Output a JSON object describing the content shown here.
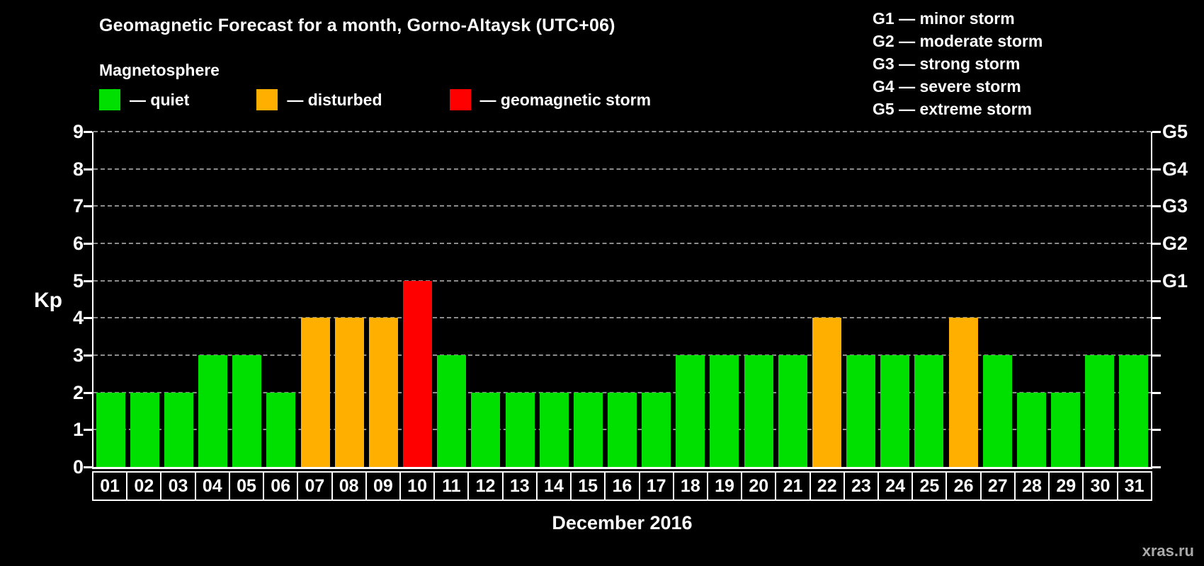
{
  "title": "Geomagnetic Forecast for a month, Gorno-Altaysk (UTC+06)",
  "legend": {
    "heading": "Magnetosphere",
    "items": [
      {
        "name": "quiet",
        "label": "— quiet",
        "color": "#00e000"
      },
      {
        "name": "disturbed",
        "label": "— disturbed",
        "color": "#ffaf00"
      },
      {
        "name": "storm",
        "label": "— geomagnetic storm",
        "color": "#ff0000"
      }
    ]
  },
  "storm_scale": [
    "G1 — minor storm",
    "G2 — moderate storm",
    "G3 — strong storm",
    "G4 — severe storm",
    "G5 — extreme storm"
  ],
  "watermark": "xras.ru",
  "chart_data": {
    "type": "bar",
    "title": "Geomagnetic Forecast for a month, Gorno-Altaysk (UTC+06)",
    "xlabel": "December 2016",
    "ylabel": "Kp",
    "ylim": [
      0,
      9
    ],
    "yticks": [
      0,
      1,
      2,
      3,
      4,
      5,
      6,
      7,
      8,
      9
    ],
    "grid": "dashed horizontal",
    "legend_position": "top-left",
    "categories": [
      "01",
      "02",
      "03",
      "04",
      "05",
      "06",
      "07",
      "08",
      "09",
      "10",
      "11",
      "12",
      "13",
      "14",
      "15",
      "16",
      "17",
      "18",
      "19",
      "20",
      "21",
      "22",
      "23",
      "24",
      "25",
      "26",
      "27",
      "28",
      "29",
      "30",
      "31"
    ],
    "values": [
      2,
      2,
      2,
      3,
      3,
      2,
      4,
      4,
      4,
      5,
      3,
      2,
      2,
      2,
      2,
      2,
      2,
      3,
      3,
      3,
      3,
      4,
      3,
      3,
      3,
      4,
      3,
      2,
      2,
      3,
      3
    ],
    "statuses": [
      "quiet",
      "quiet",
      "quiet",
      "quiet",
      "quiet",
      "quiet",
      "disturbed",
      "disturbed",
      "disturbed",
      "storm",
      "quiet",
      "quiet",
      "quiet",
      "quiet",
      "quiet",
      "quiet",
      "quiet",
      "quiet",
      "quiet",
      "quiet",
      "quiet",
      "disturbed",
      "quiet",
      "quiet",
      "quiet",
      "disturbed",
      "quiet",
      "quiet",
      "quiet",
      "quiet",
      "quiet"
    ],
    "status_colors": {
      "quiet": "#00e000",
      "disturbed": "#ffaf00",
      "storm": "#ff0000"
    },
    "right_axis": [
      {
        "label": "G1",
        "kp": 5
      },
      {
        "label": "G2",
        "kp": 6
      },
      {
        "label": "G3",
        "kp": 7
      },
      {
        "label": "G4",
        "kp": 8
      },
      {
        "label": "G5",
        "kp": 9
      }
    ]
  }
}
